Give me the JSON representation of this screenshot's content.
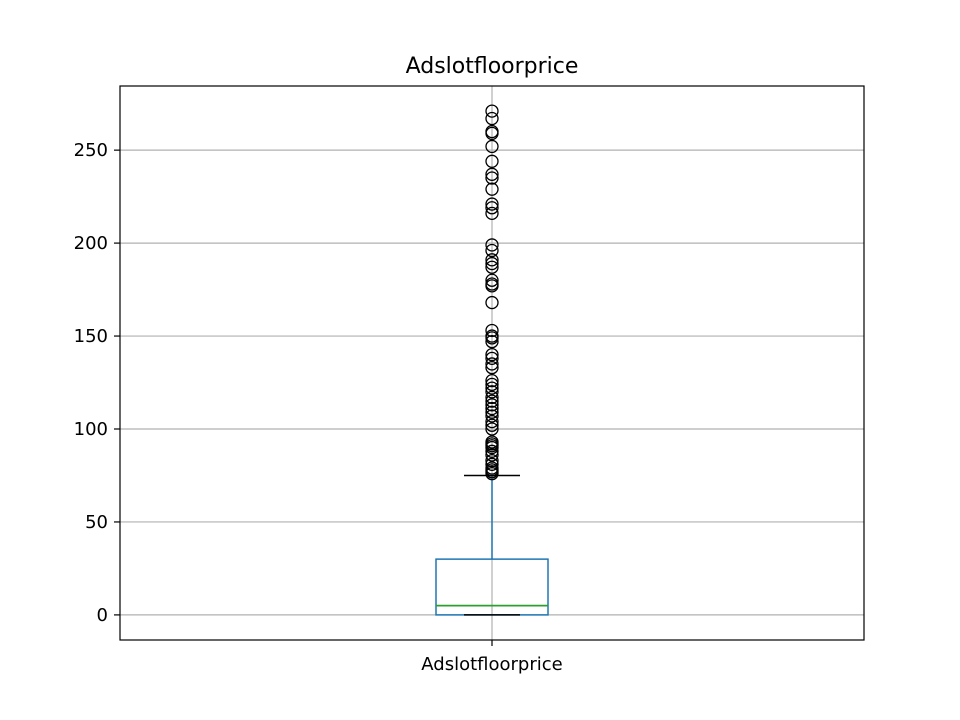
{
  "chart_data": {
    "type": "box",
    "title": "Adslotfloorprice",
    "xlabel": "",
    "ylabel": "",
    "categories": [
      "Adslotfloorprice"
    ],
    "ylim": [
      -13.5,
      284.5
    ],
    "yticks": [
      0,
      50,
      100,
      150,
      200,
      250
    ],
    "grid": true,
    "box": {
      "whisker_low": 0,
      "q1": 0,
      "median": 5,
      "q3": 30,
      "whisker_high": 75
    },
    "outliers": [
      271,
      267,
      260,
      259,
      252,
      244,
      237,
      235,
      229,
      221,
      219,
      216,
      199,
      196,
      191,
      189,
      187,
      180,
      178,
      177,
      168,
      153,
      150,
      149,
      147,
      140,
      138,
      135,
      133,
      126,
      124,
      122,
      120,
      117,
      115,
      113,
      111,
      109,
      107,
      104,
      102,
      100,
      93,
      92,
      91,
      90,
      88,
      86,
      83,
      81,
      79,
      78,
      77,
      76
    ],
    "colors": {
      "box": "#1f77b4",
      "median": "#2ca02c",
      "caps": "#000000",
      "outlier": "#000000",
      "grid": "#b0b0b0"
    }
  }
}
